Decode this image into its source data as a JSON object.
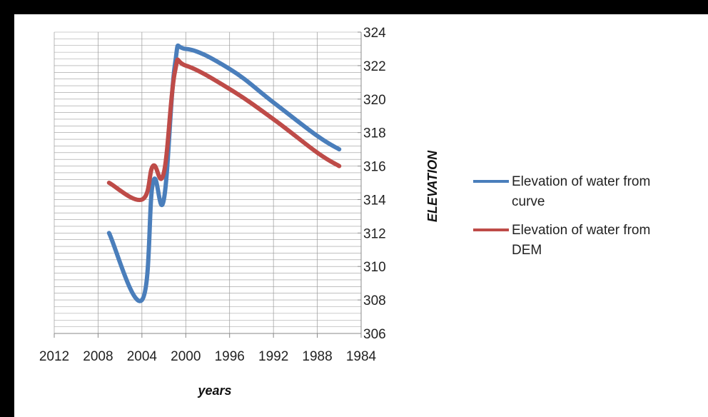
{
  "chart_data": {
    "type": "line",
    "xlabel": "years",
    "ylabel": "ELEVATION",
    "xlim": [
      2012,
      1984
    ],
    "ylim": [
      306,
      324
    ],
    "x_reversed": true,
    "y_axis_side": "right",
    "x_ticks": [
      2012,
      2008,
      2004,
      2000,
      1996,
      1992,
      1988,
      1984
    ],
    "y_ticks": [
      306,
      308,
      310,
      312,
      314,
      316,
      318,
      320,
      322,
      324
    ],
    "grid": "horizontal minor + vertical major",
    "legend_position": "right",
    "series": [
      {
        "name": "Elevation of water from curve",
        "color": "#4A7EBB",
        "points": [
          [
            2007,
            312
          ],
          [
            2004,
            308
          ],
          [
            2003,
            315
          ],
          [
            2002,
            314
          ],
          [
            2001,
            322
          ],
          [
            2000,
            323
          ],
          [
            1996,
            321.8
          ],
          [
            1992,
            319.8
          ],
          [
            1988,
            317.8
          ],
          [
            1986,
            317
          ]
        ]
      },
      {
        "name": "Elevation of water from DEM",
        "color": "#BE4B48",
        "points": [
          [
            2007,
            315
          ],
          [
            2004,
            314
          ],
          [
            2003,
            316
          ],
          [
            2002,
            315.6
          ],
          [
            2001,
            321.6
          ],
          [
            2000,
            322
          ],
          [
            1996,
            320.6
          ],
          [
            1992,
            318.8
          ],
          [
            1988,
            316.8
          ],
          [
            1986,
            316
          ]
        ]
      }
    ]
  }
}
